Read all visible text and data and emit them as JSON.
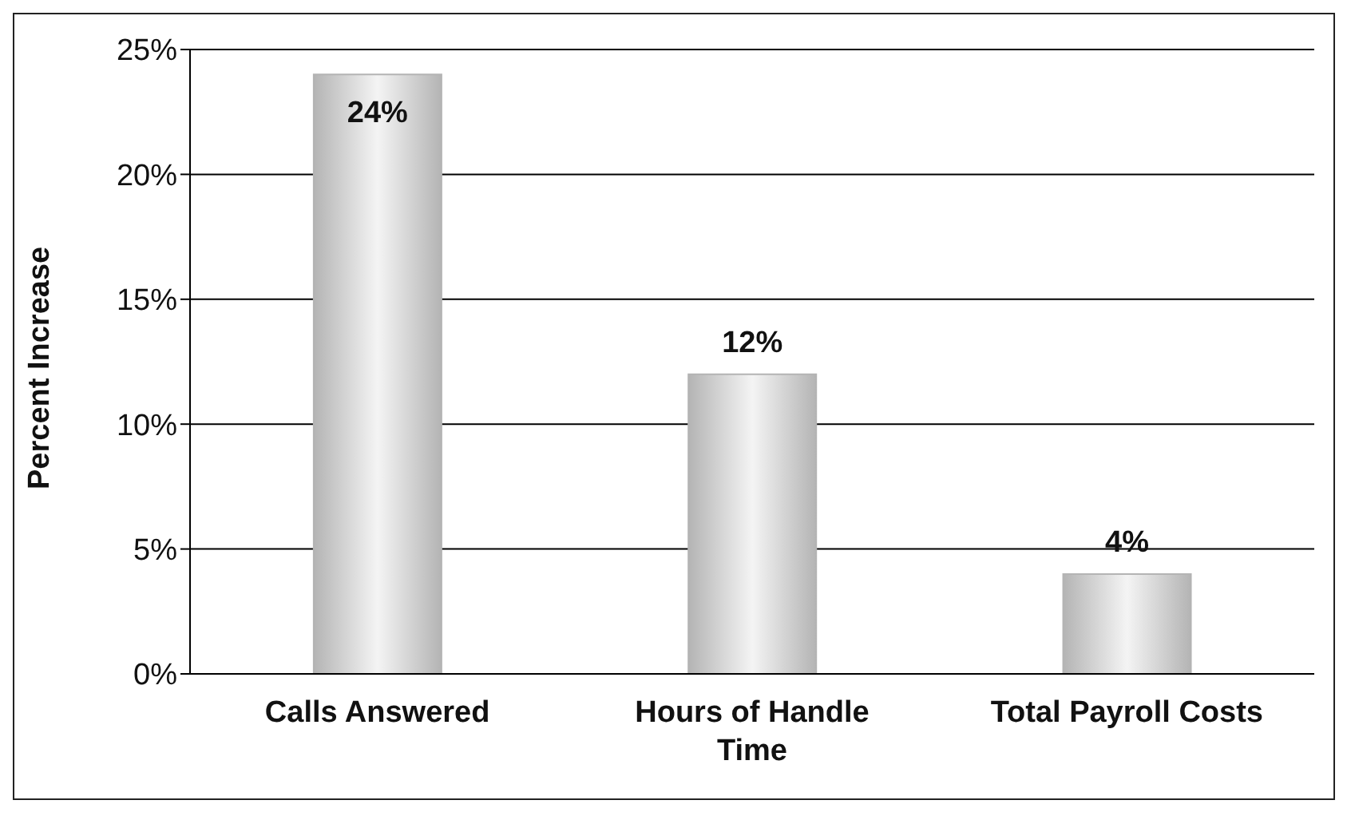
{
  "chart_data": {
    "type": "bar",
    "ylabel": "Percent Increase",
    "categories": [
      "Calls Answered",
      "Hours of Handle Time",
      "Total Payroll Costs"
    ],
    "values": [
      24,
      12,
      4
    ],
    "value_labels": [
      "24%",
      "12%",
      "4%"
    ],
    "color": "#b4b4b4",
    "ylim": [
      0,
      25
    ],
    "yticks": [
      {
        "value": 0,
        "label": "0%"
      },
      {
        "value": 5,
        "label": "5%"
      },
      {
        "value": 10,
        "label": "10%"
      },
      {
        "value": 15,
        "label": "15%"
      },
      {
        "value": 20,
        "label": "20%"
      },
      {
        "value": 25,
        "label": "25%"
      }
    ],
    "grid": "y"
  }
}
